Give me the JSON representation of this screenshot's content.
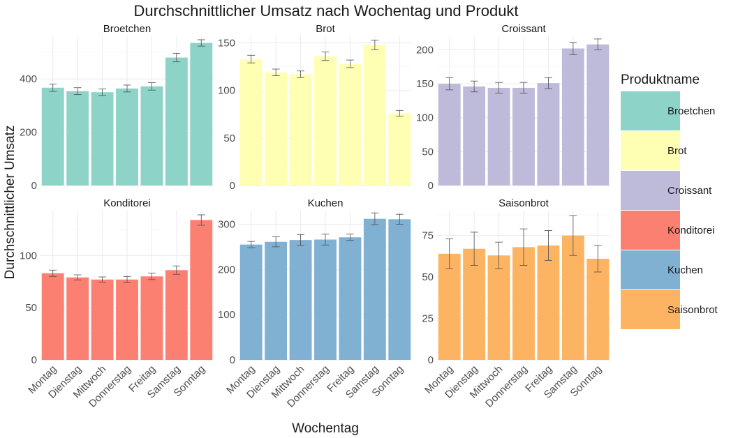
{
  "chart_data": {
    "type": "bar",
    "title": "Durchschnittlicher Umsatz nach Wochentag und Produkt",
    "xlabel": "Wochentag",
    "ylabel": "Durchschnittlicher Umsatz",
    "categories": [
      "Montag",
      "Dienstag",
      "Mittwoch",
      "Donnerstag",
      "Freitag",
      "Samstag",
      "Sonntag"
    ],
    "legend": {
      "title": "Produktname",
      "position": "right",
      "items": [
        "Broetchen",
        "Brot",
        "Croissant",
        "Konditorei",
        "Kuchen",
        "Saisonbrot"
      ]
    },
    "grid": true,
    "facets": [
      {
        "name": "Broetchen",
        "color": "#8DD3C7",
        "ylim": [
          0,
          560
        ],
        "yticks": [
          0,
          200,
          400
        ],
        "values": [
          367,
          354,
          350,
          364,
          372,
          480,
          535
        ],
        "errors": [
          14,
          13,
          12,
          13,
          14,
          16,
          12
        ]
      },
      {
        "name": "Brot",
        "color": "#FFFFB3",
        "ylim": [
          0,
          157
        ],
        "yticks": [
          0,
          50,
          100,
          150
        ],
        "values": [
          133,
          119,
          117,
          136,
          128,
          148,
          76
        ],
        "errors": [
          4,
          3.5,
          3.5,
          4.5,
          4,
          5,
          3
        ]
      },
      {
        "name": "Croissant",
        "color": "#BEBADA",
        "ylim": [
          0,
          220
        ],
        "yticks": [
          0,
          50,
          100,
          150,
          200
        ],
        "values": [
          150,
          146,
          144,
          144,
          151,
          202,
          208
        ],
        "errors": [
          9,
          8,
          8,
          8,
          8,
          9,
          8
        ]
      },
      {
        "name": "Konditorei",
        "color": "#FB8072",
        "ylim": [
          0,
          143
        ],
        "yticks": [
          0,
          50,
          100
        ],
        "values": [
          83,
          79,
          77,
          77,
          80,
          86,
          134
        ],
        "errors": [
          3,
          2.5,
          2.5,
          3,
          3,
          4,
          5
        ]
      },
      {
        "name": "Kuchen",
        "color": "#80B1D3",
        "ylim": [
          0,
          330
        ],
        "yticks": [
          0,
          100,
          200,
          300
        ],
        "values": [
          255,
          261,
          265,
          266,
          271,
          312,
          311
        ],
        "errors": [
          7,
          11,
          12,
          12,
          7,
          13,
          11
        ]
      },
      {
        "name": "Saisonbrot",
        "color": "#FDB462",
        "ylim": [
          0,
          90
        ],
        "yticks": [
          0,
          25,
          50,
          75
        ],
        "values": [
          64,
          67,
          63,
          68,
          69,
          75,
          61
        ],
        "errors": [
          9,
          10,
          8,
          11,
          9,
          12,
          8
        ]
      }
    ]
  }
}
